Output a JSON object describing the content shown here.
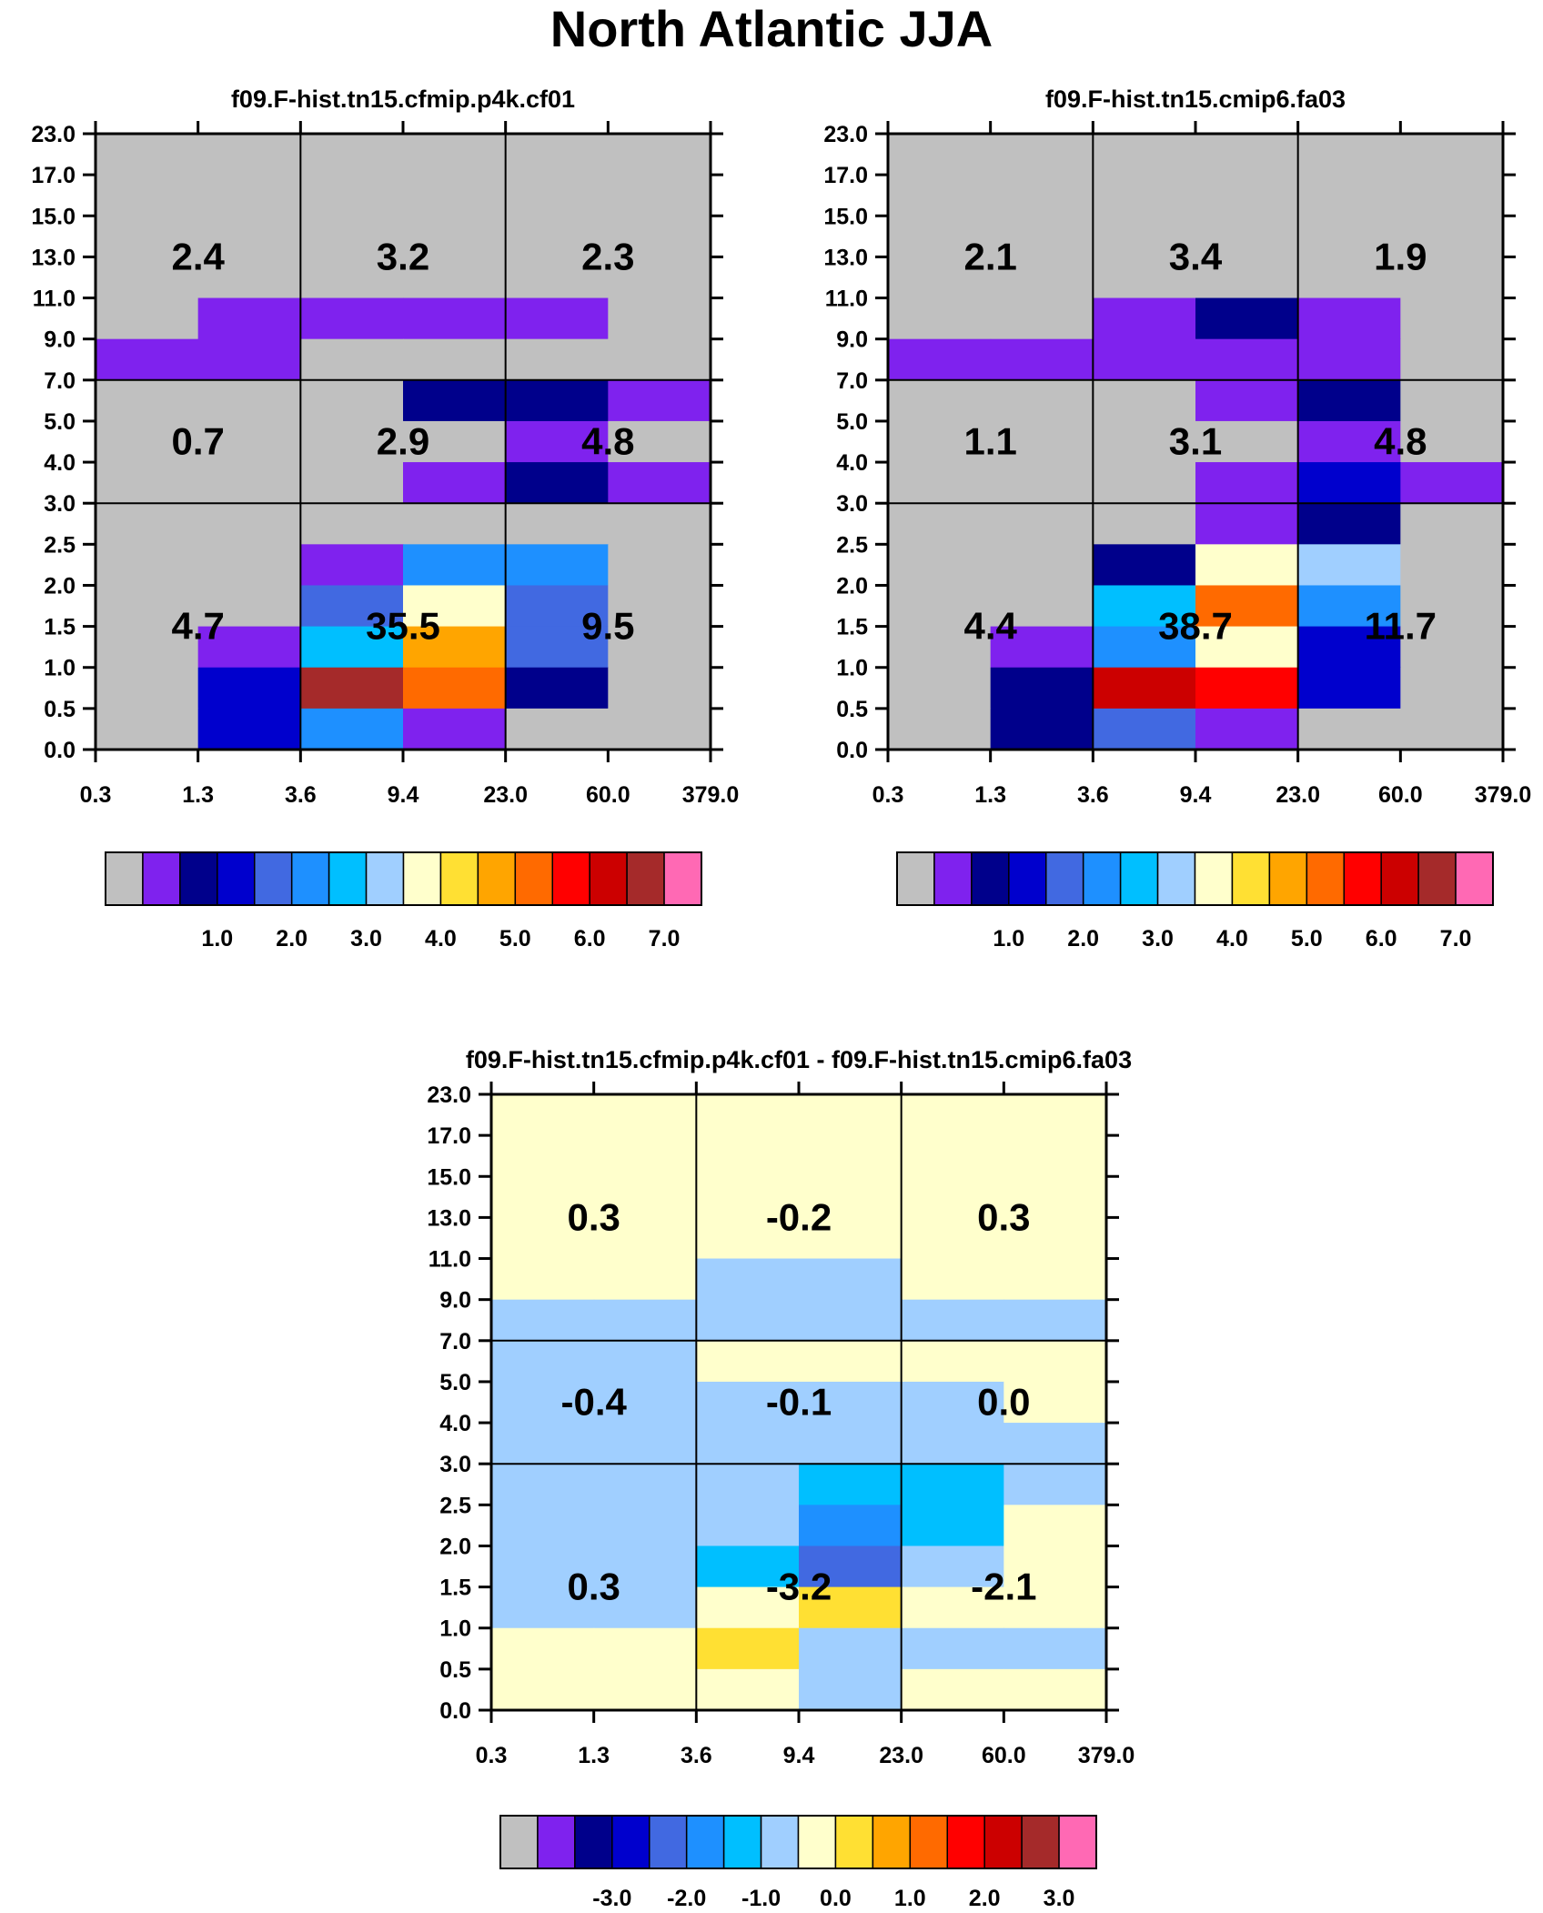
{
  "title": "North Atlantic JJA",
  "palette": {
    "grey": "#C0C0C0",
    "violet": "#7F22EE",
    "navy": "#00008B",
    "blue": "#0000CD",
    "royalblue": "#4169E1",
    "dodgerblue": "#1E90FF",
    "deepskyblue": "#00BFFF",
    "lightskyblue": "#A0CFFF",
    "lightyellow": "#FFFFCC",
    "gold": "#FFE033",
    "orange": "#FFA500",
    "darkorange": "#FF6A00",
    "red": "#FF0000",
    "crimson": "#CC0000",
    "brown": "#A52A2A",
    "pink": "#FF69B4"
  },
  "chart_data": [
    {
      "type": "heatmap",
      "title": "f09.F-hist.tn15.cfmip.p4k.cf01",
      "x_tick_labels": [
        "0.3",
        "1.3",
        "3.6",
        "9.4",
        "23.0",
        "60.0",
        "379.0"
      ],
      "y_tick_labels": [
        "0.0",
        "0.5",
        "1.0",
        "1.5",
        "2.0",
        "2.5",
        "3.0",
        "4.0",
        "5.0",
        "7.0",
        "9.0",
        "11.0",
        "13.0",
        "15.0",
        "17.0",
        "23.0"
      ],
      "cells_top_row_first": [
        [
          "grey",
          "grey",
          "grey",
          "grey",
          "grey",
          "grey"
        ],
        [
          "grey",
          "grey",
          "grey",
          "grey",
          "grey",
          "grey"
        ],
        [
          "grey",
          "grey",
          "grey",
          "grey",
          "grey",
          "grey"
        ],
        [
          "grey",
          "grey",
          "grey",
          "grey",
          "grey",
          "grey"
        ],
        [
          "grey",
          "violet",
          "violet",
          "violet",
          "violet",
          "grey"
        ],
        [
          "violet",
          "violet",
          "grey",
          "grey",
          "grey",
          "grey"
        ],
        [
          "grey",
          "grey",
          "grey",
          "navy",
          "navy",
          "violet"
        ],
        [
          "grey",
          "grey",
          "grey",
          "grey",
          "violet",
          "grey"
        ],
        [
          "grey",
          "grey",
          "grey",
          "violet",
          "navy",
          "violet"
        ],
        [
          "grey",
          "grey",
          "grey",
          "grey",
          "grey",
          "grey"
        ],
        [
          "grey",
          "grey",
          "violet",
          "dodgerblue",
          "dodgerblue",
          "grey"
        ],
        [
          "grey",
          "grey",
          "royalblue",
          "lightyellow",
          "royalblue",
          "grey"
        ],
        [
          "grey",
          "violet",
          "deepskyblue",
          "orange",
          "royalblue",
          "grey"
        ],
        [
          "grey",
          "blue",
          "brown",
          "darkorange",
          "navy",
          "grey"
        ],
        [
          "grey",
          "blue",
          "dodgerblue",
          "violet",
          "grey",
          "grey"
        ]
      ],
      "group_labels": [
        "2.4",
        "3.2",
        "2.3",
        "0.7",
        "2.9",
        "4.8",
        "4.7",
        "35.5",
        "9.5"
      ],
      "colorbar": {
        "colors": [
          "grey",
          "violet",
          "navy",
          "blue",
          "royalblue",
          "dodgerblue",
          "deepskyblue",
          "lightskyblue",
          "lightyellow",
          "gold",
          "orange",
          "darkorange",
          "red",
          "crimson",
          "brown",
          "pink"
        ],
        "labels": [
          "1.0",
          "2.0",
          "3.0",
          "4.0",
          "5.0",
          "6.0",
          "7.0"
        ]
      }
    },
    {
      "type": "heatmap",
      "title": "f09.F-hist.tn15.cmip6.fa03",
      "x_tick_labels": [
        "0.3",
        "1.3",
        "3.6",
        "9.4",
        "23.0",
        "60.0",
        "379.0"
      ],
      "y_tick_labels": [
        "0.0",
        "0.5",
        "1.0",
        "1.5",
        "2.0",
        "2.5",
        "3.0",
        "4.0",
        "5.0",
        "7.0",
        "9.0",
        "11.0",
        "13.0",
        "15.0",
        "17.0",
        "23.0"
      ],
      "cells_top_row_first": [
        [
          "grey",
          "grey",
          "grey",
          "grey",
          "grey",
          "grey"
        ],
        [
          "grey",
          "grey",
          "grey",
          "grey",
          "grey",
          "grey"
        ],
        [
          "grey",
          "grey",
          "grey",
          "grey",
          "grey",
          "grey"
        ],
        [
          "grey",
          "grey",
          "grey",
          "grey",
          "grey",
          "grey"
        ],
        [
          "grey",
          "grey",
          "violet",
          "navy",
          "violet",
          "grey"
        ],
        [
          "violet",
          "violet",
          "violet",
          "violet",
          "violet",
          "grey"
        ],
        [
          "grey",
          "grey",
          "grey",
          "violet",
          "navy",
          "grey"
        ],
        [
          "grey",
          "grey",
          "grey",
          "grey",
          "violet",
          "grey"
        ],
        [
          "grey",
          "grey",
          "grey",
          "violet",
          "blue",
          "violet"
        ],
        [
          "grey",
          "grey",
          "grey",
          "violet",
          "navy",
          "grey"
        ],
        [
          "grey",
          "grey",
          "navy",
          "lightyellow",
          "lightskyblue",
          "grey"
        ],
        [
          "grey",
          "grey",
          "deepskyblue",
          "darkorange",
          "dodgerblue",
          "grey"
        ],
        [
          "grey",
          "violet",
          "dodgerblue",
          "lightyellow",
          "blue",
          "grey"
        ],
        [
          "grey",
          "navy",
          "crimson",
          "red",
          "blue",
          "grey"
        ],
        [
          "grey",
          "navy",
          "royalblue",
          "violet",
          "grey",
          "grey"
        ]
      ],
      "group_labels": [
        "2.1",
        "3.4",
        "1.9",
        "1.1",
        "3.1",
        "4.8",
        "4.4",
        "38.7",
        "11.7"
      ],
      "colorbar": {
        "colors": [
          "grey",
          "violet",
          "navy",
          "blue",
          "royalblue",
          "dodgerblue",
          "deepskyblue",
          "lightskyblue",
          "lightyellow",
          "gold",
          "orange",
          "darkorange",
          "red",
          "crimson",
          "brown",
          "pink"
        ],
        "labels": [
          "1.0",
          "2.0",
          "3.0",
          "4.0",
          "5.0",
          "6.0",
          "7.0"
        ]
      }
    },
    {
      "type": "heatmap",
      "title": "f09.F-hist.tn15.cfmip.p4k.cf01 - f09.F-hist.tn15.cmip6.fa03",
      "x_tick_labels": [
        "0.3",
        "1.3",
        "3.6",
        "9.4",
        "23.0",
        "60.0",
        "379.0"
      ],
      "y_tick_labels": [
        "0.0",
        "0.5",
        "1.0",
        "1.5",
        "2.0",
        "2.5",
        "3.0",
        "4.0",
        "5.0",
        "7.0",
        "9.0",
        "11.0",
        "13.0",
        "15.0",
        "17.0",
        "23.0"
      ],
      "cells_top_row_first": [
        [
          "lightyellow",
          "lightyellow",
          "lightyellow",
          "lightyellow",
          "lightyellow",
          "lightyellow"
        ],
        [
          "lightyellow",
          "lightyellow",
          "lightyellow",
          "lightyellow",
          "lightyellow",
          "lightyellow"
        ],
        [
          "lightyellow",
          "lightyellow",
          "lightyellow",
          "lightyellow",
          "lightyellow",
          "lightyellow"
        ],
        [
          "lightyellow",
          "lightyellow",
          "lightyellow",
          "lightyellow",
          "lightyellow",
          "lightyellow"
        ],
        [
          "lightyellow",
          "lightyellow",
          "lightskyblue",
          "lightskyblue",
          "lightyellow",
          "lightyellow"
        ],
        [
          "lightskyblue",
          "lightskyblue",
          "lightskyblue",
          "lightskyblue",
          "lightskyblue",
          "lightskyblue"
        ],
        [
          "lightskyblue",
          "lightskyblue",
          "lightyellow",
          "lightyellow",
          "lightyellow",
          "lightyellow"
        ],
        [
          "lightskyblue",
          "lightskyblue",
          "lightskyblue",
          "lightskyblue",
          "lightskyblue",
          "lightyellow"
        ],
        [
          "lightskyblue",
          "lightskyblue",
          "lightskyblue",
          "lightskyblue",
          "lightskyblue",
          "lightskyblue"
        ],
        [
          "lightskyblue",
          "lightskyblue",
          "lightskyblue",
          "deepskyblue",
          "deepskyblue",
          "lightskyblue"
        ],
        [
          "lightskyblue",
          "lightskyblue",
          "lightskyblue",
          "dodgerblue",
          "deepskyblue",
          "lightyellow"
        ],
        [
          "lightskyblue",
          "lightskyblue",
          "deepskyblue",
          "royalblue",
          "lightskyblue",
          "lightyellow"
        ],
        [
          "lightskyblue",
          "lightskyblue",
          "lightyellow",
          "gold",
          "lightyellow",
          "lightyellow"
        ],
        [
          "lightyellow",
          "lightyellow",
          "gold",
          "lightskyblue",
          "lightskyblue",
          "lightskyblue"
        ],
        [
          "lightyellow",
          "lightyellow",
          "lightyellow",
          "lightskyblue",
          "lightyellow",
          "lightyellow"
        ]
      ],
      "group_labels": [
        "0.3",
        "-0.2",
        "0.3",
        "-0.4",
        "-0.1",
        "0.0",
        "0.3",
        "-3.2",
        "-2.1"
      ],
      "colorbar": {
        "colors": [
          "grey",
          "violet",
          "navy",
          "blue",
          "royalblue",
          "dodgerblue",
          "deepskyblue",
          "lightskyblue",
          "lightyellow",
          "gold",
          "orange",
          "darkorange",
          "red",
          "crimson",
          "brown",
          "pink"
        ],
        "labels": [
          "-3.0",
          "-2.0",
          "-1.0",
          "0.0",
          "1.0",
          "2.0",
          "3.0"
        ]
      }
    }
  ]
}
